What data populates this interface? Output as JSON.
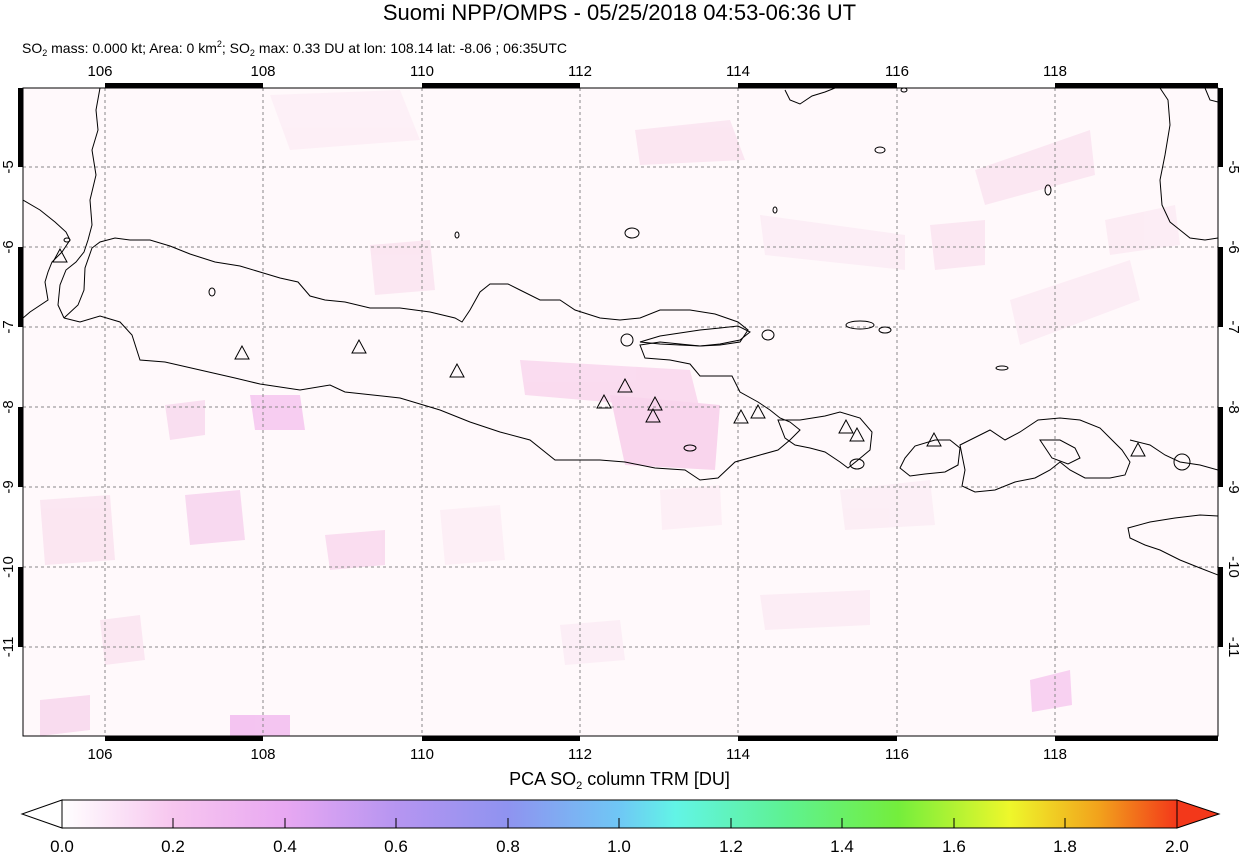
{
  "title": "Suomi NPP/OMPS - 05/25/2018 04:53-06:36 UT",
  "subtitle": {
    "mass_prefix": "SO",
    "mass_sub": "2",
    "mass_text": " mass: 0.000 kt; Area: 0 km",
    "area_sup": "2",
    "sep": "; SO",
    "max_sub": "2",
    "max_text": " max: 0.33 DU at lon: 108.14 lat: -8.06 ; 06:35UTC"
  },
  "map": {
    "lon_ticks": [
      "106",
      "108",
      "110",
      "112",
      "114",
      "116",
      "118"
    ],
    "lat_ticks": [
      "-5",
      "-6",
      "-7",
      "-8",
      "-9",
      "-10",
      "-11"
    ],
    "lon_range": [
      105,
      120
    ],
    "lat_range": [
      -12,
      -4
    ],
    "coastline_color": "#000000",
    "grid_color": "#888888",
    "volcano_count": 14
  },
  "colorbar": {
    "title_prefix": "PCA SO",
    "title_sub": "2",
    "title_suffix": " column TRM [DU]",
    "ticks": [
      "0.0",
      "0.2",
      "0.4",
      "0.6",
      "0.8",
      "1.0",
      "1.2",
      "1.4",
      "1.6",
      "1.8",
      "2.0"
    ],
    "range": [
      0.0,
      2.0
    ],
    "colors": [
      "#ffffff",
      "#f7c6ef",
      "#d49af2",
      "#8f93f0",
      "#6fc7f5",
      "#62f4e6",
      "#5ef291",
      "#74ee3c",
      "#eef72b",
      "#f2a21c",
      "#f3381a"
    ]
  }
}
